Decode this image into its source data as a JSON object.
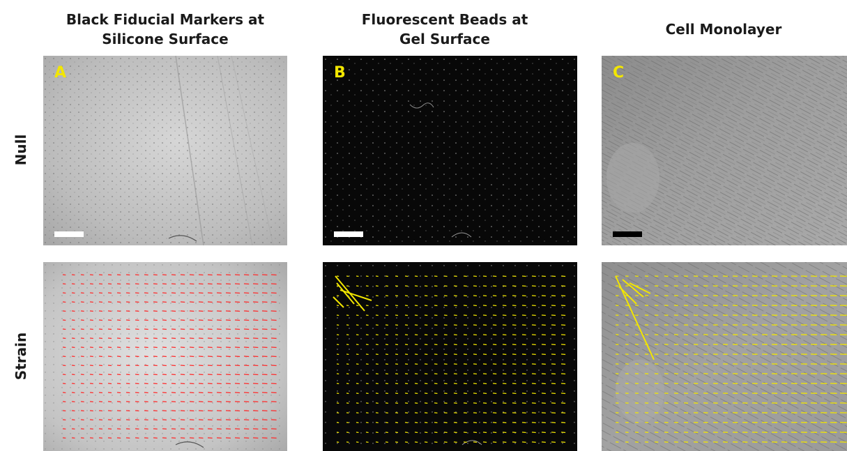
{
  "columns": [
    {
      "title_line1": "Black Fiducial Markers at",
      "title_line2": "Silicone Surface"
    },
    {
      "title_line1": "Fluorescent Beads at",
      "title_line2": "Gel Surface"
    },
    {
      "title_line1": "Cell Monolayer",
      "title_line2": ""
    }
  ],
  "rows": [
    {
      "label": "Null"
    },
    {
      "label": "Strain"
    }
  ],
  "panels": [
    {
      "letter": "A",
      "letter_color": "#f2e600",
      "scale_bar_color": "#ffffff",
      "background": "#bdbdbd",
      "content": "grey brightfield image of silicone surface with black fiducial dots"
    },
    {
      "letter": "B",
      "letter_color": "#f2e600",
      "scale_bar_color": "#ffffff",
      "background": "#0a0a0a",
      "content": "black fluorescence image with scattered white beads"
    },
    {
      "letter": "C",
      "letter_color": "#f2e600",
      "scale_bar_color": "#000000",
      "background": "#8a8a8a",
      "content": "grey phase-contrast image of elongated cell monolayer"
    }
  ],
  "strain_vectors": [
    {
      "panel": "A",
      "color": "#ff2a2a"
    },
    {
      "panel": "B",
      "color": "#f2e600"
    },
    {
      "panel": "C",
      "color": "#f2e600"
    }
  ]
}
